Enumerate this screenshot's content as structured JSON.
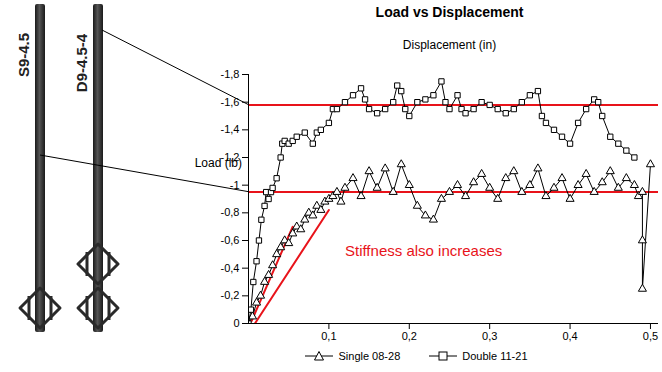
{
  "chart_data": {
    "type": "line",
    "title": "Load vs Displacement",
    "xlabel": "Displacement (in)",
    "ylabel": "Load (lb)",
    "xlim": [
      0,
      0.51
    ],
    "xticks": [
      {
        "value": 0.1,
        "label": "0,1"
      },
      {
        "value": 0.2,
        "label": "0,2"
      },
      {
        "value": 0.3,
        "label": "0,3"
      },
      {
        "value": 0.4,
        "label": "0,4"
      },
      {
        "value": 0.5,
        "label": "0,5"
      }
    ],
    "ylim": [
      -1.8,
      0
    ],
    "yticks": [
      {
        "value": -1.8,
        "label": "-1,8"
      },
      {
        "value": -1.6,
        "label": "-1,6"
      },
      {
        "value": -1.4,
        "label": "-1,4"
      },
      {
        "value": -1.2,
        "label": "-1,2"
      },
      -1,
      {
        "value": -0.8,
        "label": "-0,8"
      },
      {
        "value": -0.6,
        "label": "-0,6"
      },
      {
        "value": -0.4,
        "label": "-0,4"
      },
      {
        "value": -0.2,
        "label": "-0,2"
      },
      0
    ],
    "grid": false,
    "legend": "bottom",
    "series": [
      {
        "name": "Single 08-28",
        "color": "#000000",
        "marker": "triangle",
        "line_style": "solid",
        "x": [
          0,
          0.005,
          0.01,
          0.015,
          0.02,
          0.025,
          0.03,
          0.035,
          0.04,
          0.045,
          0.05,
          0.055,
          0.06,
          0.065,
          0.07,
          0.075,
          0.08,
          0.085,
          0.09,
          0.095,
          0.1,
          0.105,
          0.11,
          0.115,
          0.12,
          0.13,
          0.14,
          0.15,
          0.16,
          0.17,
          0.18,
          0.19,
          0.2,
          0.21,
          0.22,
          0.23,
          0.24,
          0.25,
          0.26,
          0.27,
          0.28,
          0.29,
          0.3,
          0.31,
          0.32,
          0.33,
          0.34,
          0.35,
          0.36,
          0.37,
          0.38,
          0.39,
          0.4,
          0.41,
          0.42,
          0.43,
          0.44,
          0.45,
          0.46,
          0.47,
          0.48,
          0.485,
          0.49,
          0.49,
          0.49,
          0.5
        ],
        "values": [
          0,
          -0.05,
          -0.15,
          -0.2,
          -0.3,
          -0.35,
          -0.42,
          -0.5,
          -0.55,
          -0.6,
          -0.58,
          -0.65,
          -0.7,
          -0.68,
          -0.75,
          -0.8,
          -0.78,
          -0.85,
          -0.82,
          -0.88,
          -0.9,
          -0.92,
          -0.95,
          -0.88,
          -0.98,
          -1.05,
          -0.92,
          -1.1,
          -0.98,
          -1.12,
          -0.95,
          -1.15,
          -1.0,
          -0.85,
          -0.78,
          -0.75,
          -0.9,
          -0.95,
          -1.0,
          -0.92,
          -1.02,
          -1.08,
          -0.98,
          -0.9,
          -1.05,
          -1.1,
          -0.95,
          -1.0,
          -1.12,
          -0.92,
          -0.98,
          -1.05,
          -0.9,
          -1.0,
          -1.08,
          -0.95,
          -1.02,
          -1.1,
          -0.98,
          -1.05,
          -1.0,
          -0.92,
          -0.95,
          -0.6,
          -0.25,
          -1.15
        ]
      },
      {
        "name": "Double 11-21",
        "color": "#000000",
        "marker": "square",
        "line_style": "solid",
        "x": [
          0,
          0.003,
          0.006,
          0.01,
          0.013,
          0.016,
          0.02,
          0.022,
          0.025,
          0.028,
          0.03,
          0.035,
          0.04,
          0.042,
          0.045,
          0.05,
          0.055,
          0.06,
          0.07,
          0.08,
          0.085,
          0.09,
          0.1,
          0.105,
          0.11,
          0.12,
          0.13,
          0.14,
          0.145,
          0.15,
          0.16,
          0.17,
          0.18,
          0.185,
          0.19,
          0.195,
          0.2,
          0.21,
          0.22,
          0.23,
          0.24,
          0.245,
          0.25,
          0.26,
          0.265,
          0.27,
          0.28,
          0.29,
          0.3,
          0.31,
          0.32,
          0.33,
          0.34,
          0.35,
          0.36,
          0.365,
          0.37,
          0.38,
          0.39,
          0.4,
          0.41,
          0.42,
          0.43,
          0.435,
          0.44,
          0.45,
          0.46,
          0.47,
          0.48
        ],
        "values": [
          0,
          -0.1,
          -0.3,
          -0.45,
          -0.6,
          -0.75,
          -0.85,
          -0.95,
          -0.9,
          -0.95,
          -0.98,
          -1.05,
          -1.2,
          -1.3,
          -1.32,
          -1.3,
          -1.32,
          -1.35,
          -1.38,
          -1.3,
          -1.38,
          -1.4,
          -1.45,
          -1.55,
          -1.55,
          -1.6,
          -1.65,
          -1.7,
          -1.62,
          -1.55,
          -1.52,
          -1.55,
          -1.6,
          -1.72,
          -1.68,
          -1.55,
          -1.5,
          -1.6,
          -1.62,
          -1.65,
          -1.75,
          -1.6,
          -1.55,
          -1.65,
          -1.55,
          -1.52,
          -1.55,
          -1.6,
          -1.58,
          -1.55,
          -1.52,
          -1.55,
          -1.6,
          -1.65,
          -1.68,
          -1.5,
          -1.45,
          -1.4,
          -1.35,
          -1.3,
          -1.45,
          -1.55,
          -1.62,
          -1.6,
          -1.5,
          -1.35,
          -1.3,
          -1.25,
          -1.2
        ]
      }
    ],
    "reference_lines": [
      {
        "label": "S9-4.5",
        "value": -0.95,
        "color": "#e8131a"
      },
      {
        "label": "D9-4.5-4",
        "value": -1.58,
        "color": "#e8131a"
      }
    ],
    "stiffness_lines": [
      {
        "x": [
          0.004,
          0.055
        ],
        "values": [
          -0.02,
          -0.7
        ],
        "color": "#e8131a"
      },
      {
        "x": [
          0.008,
          0.1
        ],
        "values": [
          0,
          -0.82
        ],
        "color": "#e8131a"
      }
    ],
    "annotations": [
      {
        "text": "Stiffness also increases",
        "x": 0.12,
        "y": -0.52,
        "color": "#e8131a"
      }
    ]
  }
}
